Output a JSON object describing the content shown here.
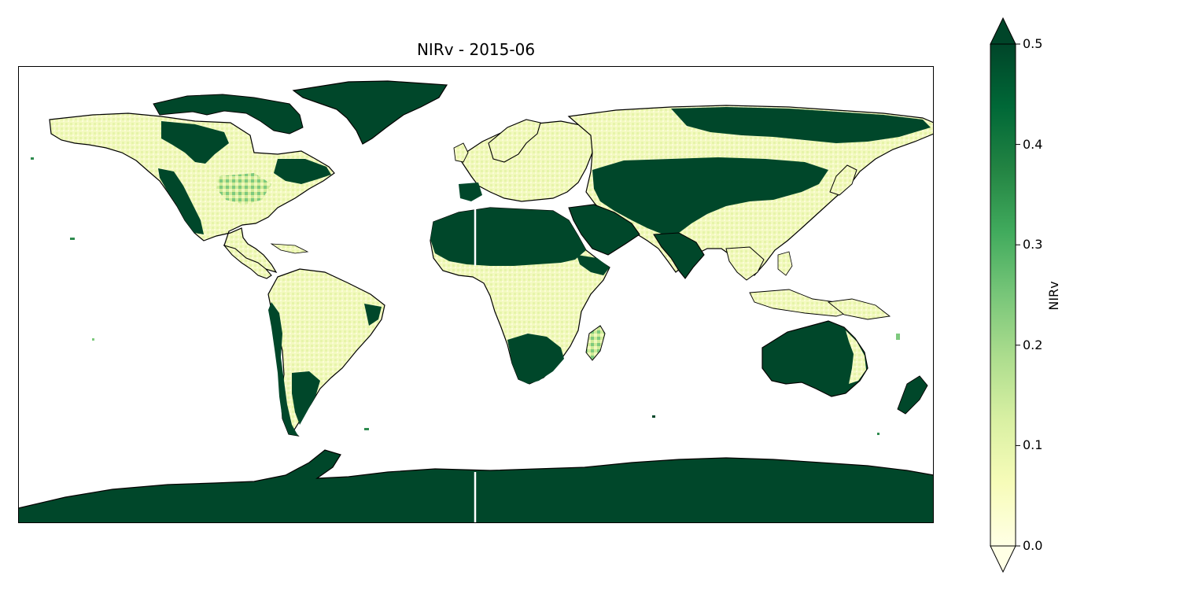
{
  "title": "NIRv - 2015-06",
  "colorbar": {
    "label": "NIRv",
    "ticks": [
      "0.0",
      "0.1",
      "0.2",
      "0.3",
      "0.4",
      "0.5"
    ],
    "tick_values": [
      0.0,
      0.1,
      0.2,
      0.3,
      0.4,
      0.5
    ],
    "min": 0.0,
    "max": 0.5,
    "extend": "both",
    "colormap": "YlGn",
    "stops": [
      "#ffffe5",
      "#f7fcb9",
      "#d9f0a3",
      "#addd8e",
      "#78c679",
      "#41ab5d",
      "#238443",
      "#006837",
      "#004529"
    ]
  },
  "map": {
    "projection": "PlateCarree",
    "extent_lon": [
      -180,
      180
    ],
    "extent_lat": [
      -90,
      90
    ],
    "land_high_color": "#00472a",
    "land_low_color": "#f4fbc2",
    "ocean_color": "#ffffff",
    "coastline_color": "#000000"
  }
}
